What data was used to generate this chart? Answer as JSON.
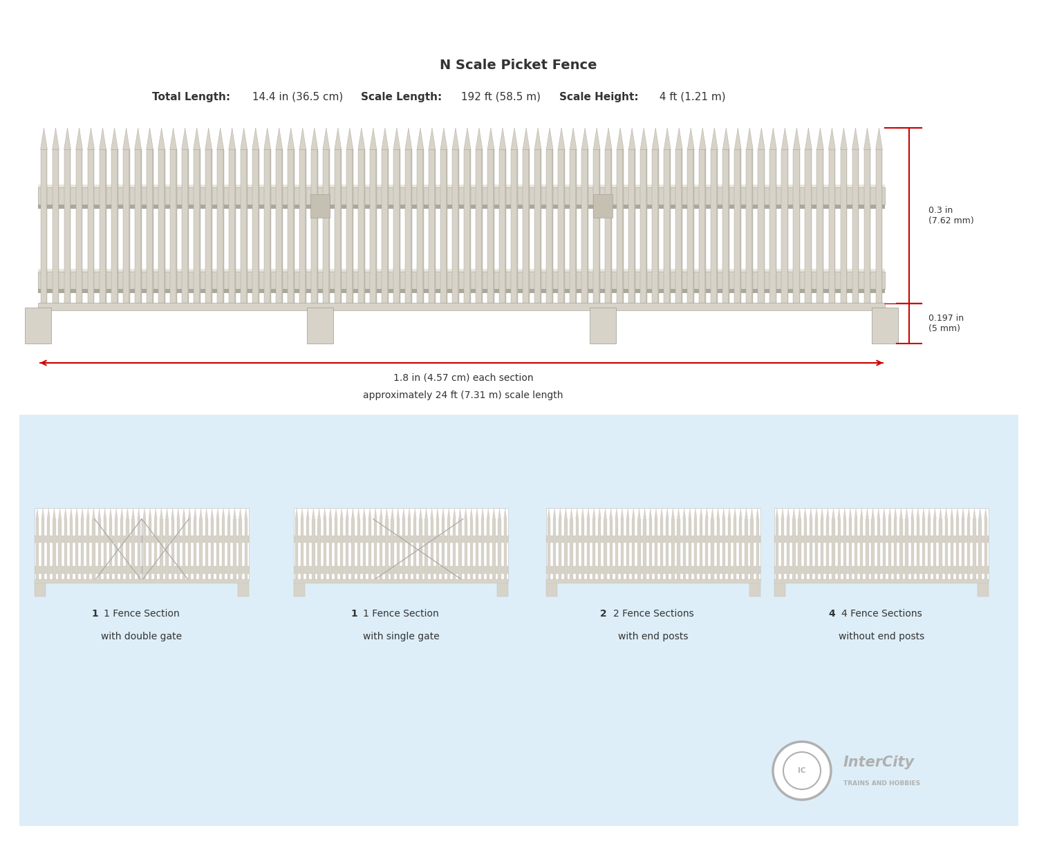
{
  "title": "N Scale Picket Fence",
  "dim1_label": "0.3 in\n(7.62 mm)",
  "dim2_label": "0.197 in\n(5 mm)",
  "section_label_line1": "1.8 in (4.57 cm) each section",
  "section_label_line2": "approximately 24 ft (7.31 m) scale length",
  "bg_color": "#ffffff",
  "fence_color": "#d8d3c8",
  "fence_outline": "#999990",
  "fence_dark": "#aaa89a",
  "red_color": "#cc0000",
  "blue_bg": "#ddeef8",
  "logo_color": "#b0b0b0",
  "text_color": "#333333"
}
